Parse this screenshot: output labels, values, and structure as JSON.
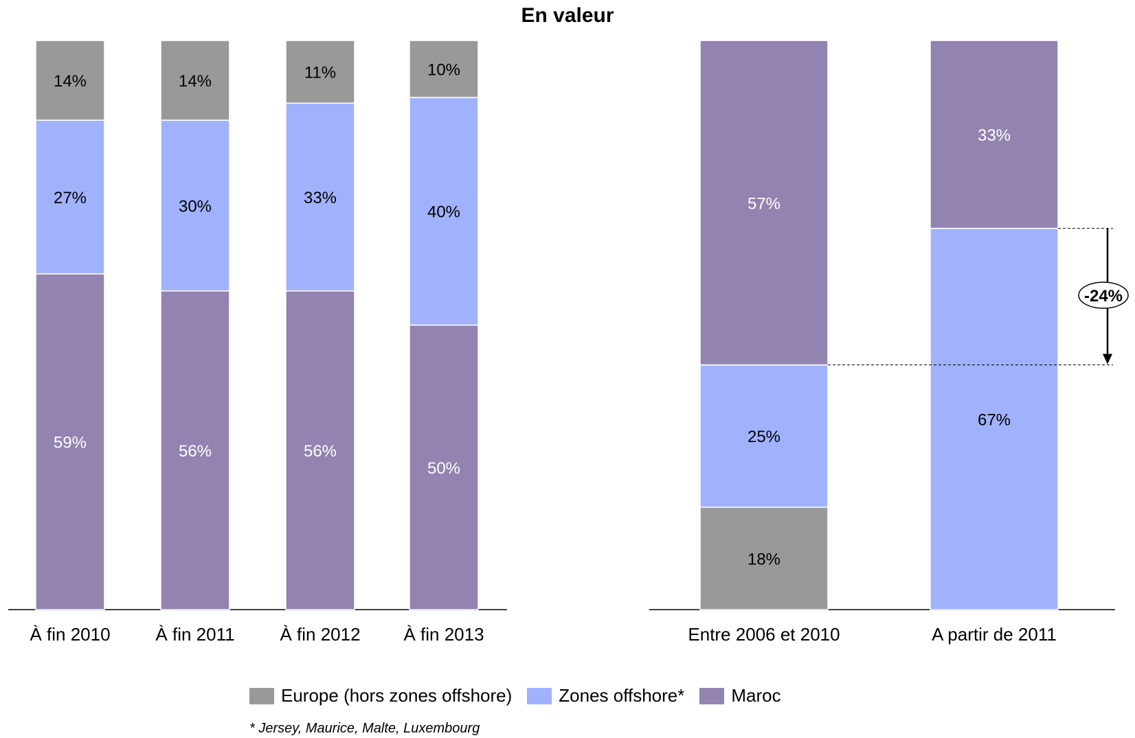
{
  "title": "En valeur",
  "colors": {
    "europe": "#999999",
    "offshore": "#a0b2fc",
    "maroc": "#9383b0"
  },
  "legend": [
    {
      "key": "europe",
      "label": "Europe (hors zones offshore)"
    },
    {
      "key": "offshore",
      "label": "Zones offshore*"
    },
    {
      "key": "maroc",
      "label": "Maroc"
    }
  ],
  "footnote": "* Jersey, Maurice, Malte, Luxembourg",
  "chart_data": [
    {
      "type": "bar",
      "stacked": true,
      "categories": [
        "À fin 2010",
        "À fin 2011",
        "À fin 2012",
        "À fin 2013"
      ],
      "series": [
        {
          "name": "Maroc",
          "key": "maroc",
          "values": [
            59,
            56,
            56,
            50
          ],
          "labels": [
            "59%",
            "56%",
            "56%",
            "50%"
          ]
        },
        {
          "name": "Zones offshore*",
          "key": "offshore",
          "values": [
            27,
            30,
            33,
            40
          ],
          "labels": [
            "27%",
            "30%",
            "33%",
            "40%"
          ]
        },
        {
          "name": "Europe (hors zones offshore)",
          "key": "europe",
          "values": [
            14,
            14,
            11,
            10
          ],
          "labels": [
            "14%",
            "14%",
            "11%",
            "10%"
          ]
        }
      ],
      "ylim": [
        0,
        100
      ]
    },
    {
      "type": "bar",
      "stacked": true,
      "categories": [
        "Entre 2006 et 2010",
        "A partir de 2011"
      ],
      "series": [
        {
          "name": "Europe (hors zones offshore)",
          "key": "europe",
          "values": [
            18,
            0
          ],
          "labels": [
            "18%",
            ""
          ]
        },
        {
          "name": "Zones offshore*",
          "key": "offshore",
          "values": [
            25,
            67
          ],
          "labels": [
            "25%",
            "67%"
          ]
        },
        {
          "name": "Maroc",
          "key": "maroc",
          "values": [
            57,
            33
          ],
          "labels": [
            "57%",
            "33%"
          ]
        }
      ],
      "annotation": "-24%",
      "ylim": [
        0,
        100
      ]
    }
  ]
}
